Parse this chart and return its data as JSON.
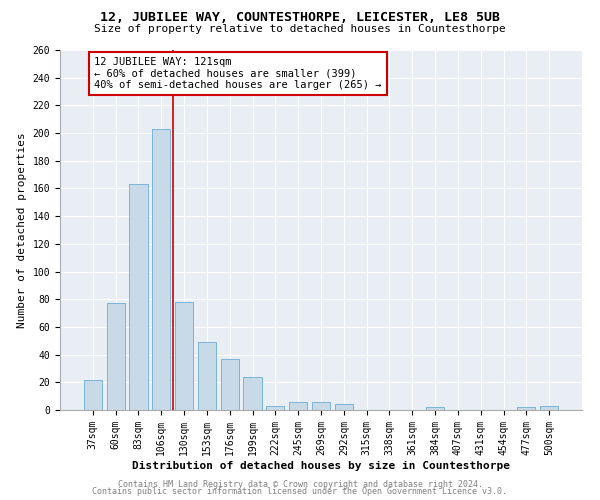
{
  "title1": "12, JUBILEE WAY, COUNTESTHORPE, LEICESTER, LE8 5UB",
  "title2": "Size of property relative to detached houses in Countesthorpe",
  "xlabel": "Distribution of detached houses by size in Countesthorpe",
  "ylabel": "Number of detached properties",
  "categories": [
    "37sqm",
    "60sqm",
    "83sqm",
    "106sqm",
    "130sqm",
    "153sqm",
    "176sqm",
    "199sqm",
    "222sqm",
    "245sqm",
    "269sqm",
    "292sqm",
    "315sqm",
    "338sqm",
    "361sqm",
    "384sqm",
    "407sqm",
    "431sqm",
    "454sqm",
    "477sqm",
    "500sqm"
  ],
  "values": [
    22,
    77,
    163,
    203,
    78,
    49,
    37,
    24,
    3,
    6,
    6,
    4,
    0,
    0,
    0,
    2,
    0,
    0,
    0,
    2,
    3
  ],
  "bar_color": "#c8d9e8",
  "bar_edge_color": "#6aadd5",
  "vline_x": 3.5,
  "vline_color": "#cc0000",
  "annotation_box_text": "12 JUBILEE WAY: 121sqm\n← 60% of detached houses are smaller (399)\n40% of semi-detached houses are larger (265) →",
  "box_edge_color": "#cc0000",
  "ylim": [
    0,
    260
  ],
  "yticks": [
    0,
    20,
    40,
    60,
    80,
    100,
    120,
    140,
    160,
    180,
    200,
    220,
    240,
    260
  ],
  "footer1": "Contains HM Land Registry data © Crown copyright and database right 2024.",
  "footer2": "Contains public sector information licensed under the Open Government Licence v3.0.",
  "bg_color": "#e8eef4",
  "grid_color": "#ffffff",
  "title1_fontsize": 9.5,
  "title2_fontsize": 8,
  "xlabel_fontsize": 8,
  "ylabel_fontsize": 8,
  "tick_fontsize": 7,
  "annotation_fontsize": 7.5,
  "footer_fontsize": 6
}
